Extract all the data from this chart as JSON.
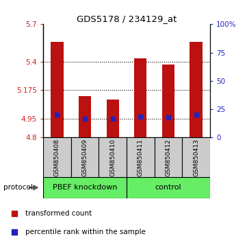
{
  "title": "GDS5178 / 234129_at",
  "categories": [
    "GSM850408",
    "GSM850409",
    "GSM850410",
    "GSM850411",
    "GSM850412",
    "GSM850413"
  ],
  "bar_values": [
    5.56,
    5.13,
    5.1,
    5.43,
    5.38,
    5.56
  ],
  "bar_bottom": 4.8,
  "blue_dot_values": [
    4.982,
    4.95,
    4.95,
    4.962,
    4.96,
    4.982
  ],
  "ylim_left": [
    4.8,
    5.7
  ],
  "ylim_right": [
    0,
    100
  ],
  "yticks_left": [
    4.8,
    4.95,
    5.175,
    5.4,
    5.7
  ],
  "yticks_right": [
    0,
    25,
    50,
    75,
    100
  ],
  "ytick_labels_right": [
    "0",
    "25",
    "50",
    "75",
    "100%"
  ],
  "bar_color": "#bb1111",
  "blue_dot_color": "#2222bb",
  "group1_label": "PBEF knockdown",
  "group2_label": "control",
  "protocol_label": "protocol",
  "legend_red_label": "transformed count",
  "legend_blue_label": "percentile rank within the sample",
  "sample_box_color": "#cccccc",
  "group_fill_color": "#66ee66",
  "grid_dotted_ticks": [
    4.95,
    5.175,
    5.4
  ],
  "left_ytick_color": "#cc2222",
  "right_ytick_color": "#2222cc"
}
